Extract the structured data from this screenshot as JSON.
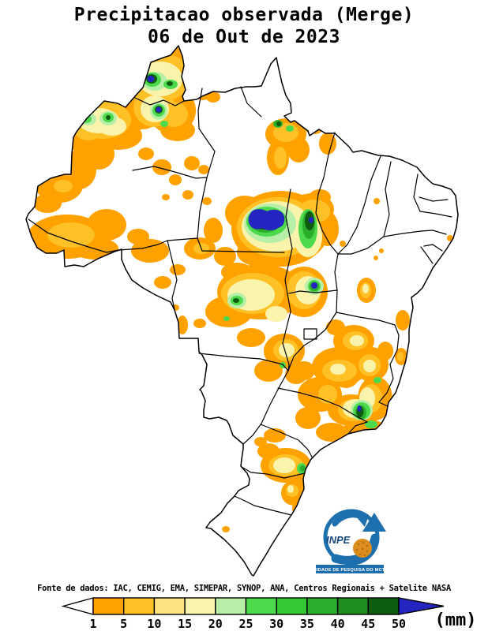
{
  "title": {
    "line1": "Precipitacao observada (Merge)",
    "line2": "06 de Out de 2023"
  },
  "source_line": "Fonte de dados: IAC, CEMIG, EMA, SIMEPAR, SYNOP, ANA, Centros Regionais + Satelite NASA",
  "colorbar": {
    "unit": "(mm)",
    "ticks": [
      1,
      5,
      10,
      15,
      20,
      25,
      30,
      35,
      40,
      45,
      50
    ],
    "colors": [
      "#FFA200",
      "#FFC125",
      "#FFE282",
      "#FAF3AC",
      "#B8EFA8",
      "#4CD94C",
      "#35C835",
      "#2BAE2B",
      "#1E8E1E",
      "#0E5C10"
    ],
    "below_color": "#FFFFFF",
    "above_color": "#2424C0"
  },
  "logo": {
    "acronym": "INPE",
    "banner": "UNIDADE DE PESQUISA DO MCTIC",
    "blue": "#1E6FAE",
    "orange": "#DD8C1E",
    "dark_blue_text": "#17497E"
  },
  "map": {
    "land_color": "#FFFFFF",
    "border_color": "#000000"
  }
}
